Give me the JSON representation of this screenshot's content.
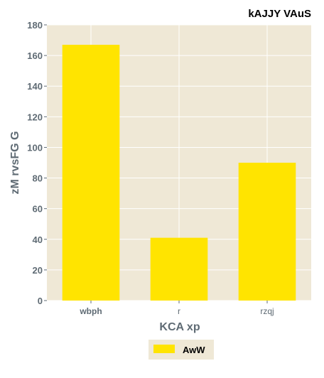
{
  "chart_data": {
    "type": "bar",
    "title": "kAJJY  VAuS",
    "xlabel": "KCA xp",
    "ylabel": "zM rvsFG G",
    "categories": [
      "wbph",
      "r",
      "rzqj"
    ],
    "series": [
      {
        "name": "AwW",
        "values": [
          167,
          41,
          90
        ],
        "color": "#ffe400"
      }
    ],
    "ylim": [
      0,
      180
    ],
    "yticks": [
      0,
      20,
      40,
      60,
      80,
      100,
      120,
      140,
      160,
      180
    ],
    "grid": true,
    "legend_position": "bottom-center",
    "colors": {
      "plot_background": "#efe8d6",
      "grid": "#ffffff",
      "text": "#5f6b74",
      "legend_background": "#efe8d6"
    }
  }
}
